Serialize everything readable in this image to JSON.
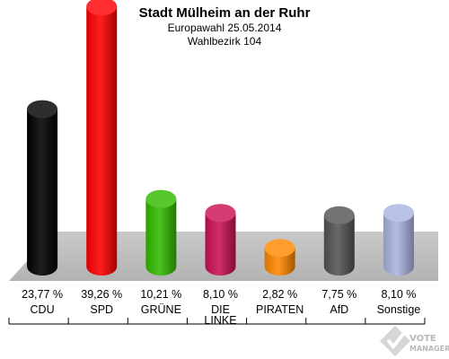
{
  "chart_data": {
    "type": "bar",
    "title": "Stadt Mülheim an der Ruhr",
    "subtitle": "Europawahl 25.05.2014",
    "subtitle2": "Wahlbezirk 104",
    "categories": [
      "CDU",
      "SPD",
      "GRÜNE",
      "DIE LINKE",
      "PIRATEN",
      "AfD",
      "Sonstige"
    ],
    "category_lines": [
      [
        "CDU"
      ],
      [
        "SPD"
      ],
      [
        "GRÜNE"
      ],
      [
        "DIE",
        "LINKE"
      ],
      [
        "PIRATEN"
      ],
      [
        "AfD"
      ],
      [
        "Sonstige"
      ]
    ],
    "values": [
      23.77,
      39.26,
      10.21,
      8.1,
      2.82,
      7.75,
      8.1
    ],
    "value_labels": [
      "23,77 %",
      "39,26 %",
      "10,21 %",
      "8,10 %",
      "2,82 %",
      "7,75 %",
      "8,10 %"
    ],
    "colors": [
      "#000000",
      "#ff0000",
      "#33bb00",
      "#cc1155",
      "#ff8800",
      "#555555",
      "#aab4e0"
    ],
    "ylim": [
      0,
      40
    ],
    "grid": false
  },
  "watermark": {
    "line1": "VOTE",
    "line2": "MANAGER",
    "icon": "vote-manager-logo-icon"
  }
}
